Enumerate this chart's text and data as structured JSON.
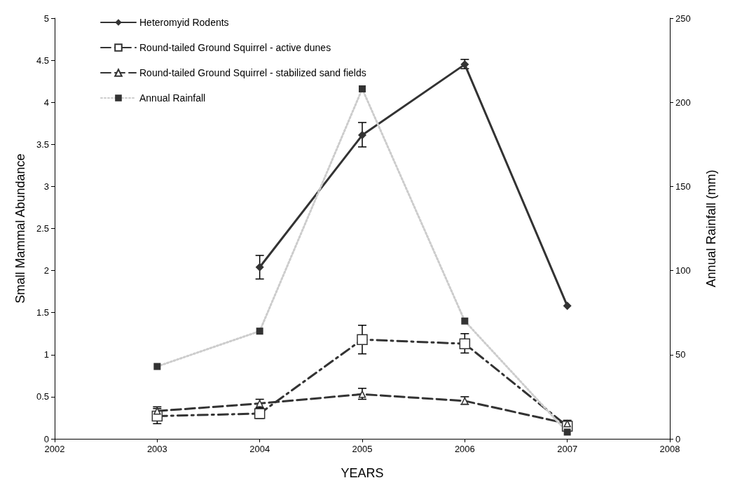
{
  "chart_data": {
    "type": "line",
    "xlabel": "YEARS",
    "ylabel": "Small Mammal Abundance",
    "y2label": "Annual Rainfall (mm)",
    "x": [
      2003,
      2004,
      2005,
      2006,
      2007
    ],
    "xlim": [
      2002,
      2008
    ],
    "xticks": [
      2002,
      2003,
      2004,
      2005,
      2006,
      2007,
      2008
    ],
    "ylim": [
      0,
      5
    ],
    "yticks": [
      0,
      0.5,
      1,
      1.5,
      2,
      2.5,
      3,
      3.5,
      4,
      4.5,
      5
    ],
    "y2lim": [
      0,
      250
    ],
    "y2ticks": [
      0,
      50,
      100,
      150,
      200,
      250
    ],
    "grid": false,
    "legend": "top left",
    "series": [
      {
        "name": "Heteromyid Rodents",
        "color": "#333333",
        "marker": "diamond",
        "line_style": "solid",
        "values": [
          null,
          2.04,
          3.61,
          4.45,
          1.58
        ],
        "errors": [
          null,
          [
            1.9,
            2.18
          ],
          [
            3.47,
            3.76
          ],
          [
            4.4,
            4.51
          ],
          null
        ]
      },
      {
        "name": "Round-tailed Ground Squirrel - active dunes",
        "color": "#333333",
        "marker": "square-open",
        "line_style": "dashdot",
        "values": [
          0.27,
          0.3,
          1.18,
          1.13,
          0.15
        ],
        "errors": [
          [
            0.18,
            0.36
          ],
          [
            0.24,
            0.36
          ],
          [
            1.01,
            1.35
          ],
          [
            1.02,
            1.25
          ],
          [
            0.1,
            0.2
          ]
        ]
      },
      {
        "name": "Round-tailed Ground Squirrel - stabilized sand fields",
        "color": "#333333",
        "marker": "triangle-open",
        "line_style": "dashed",
        "values": [
          0.33,
          0.42,
          0.53,
          0.45,
          0.18
        ],
        "errors": [
          [
            0.28,
            0.38
          ],
          [
            0.37,
            0.47
          ],
          [
            0.47,
            0.6
          ],
          [
            0.41,
            0.5
          ],
          [
            0.14,
            0.22
          ]
        ]
      },
      {
        "name": "Annual Rainfall",
        "color": "#cccccc",
        "marker": "square",
        "line_style": "dotted",
        "axis": "y2",
        "values": [
          43,
          64,
          208,
          70,
          4
        ]
      }
    ]
  }
}
